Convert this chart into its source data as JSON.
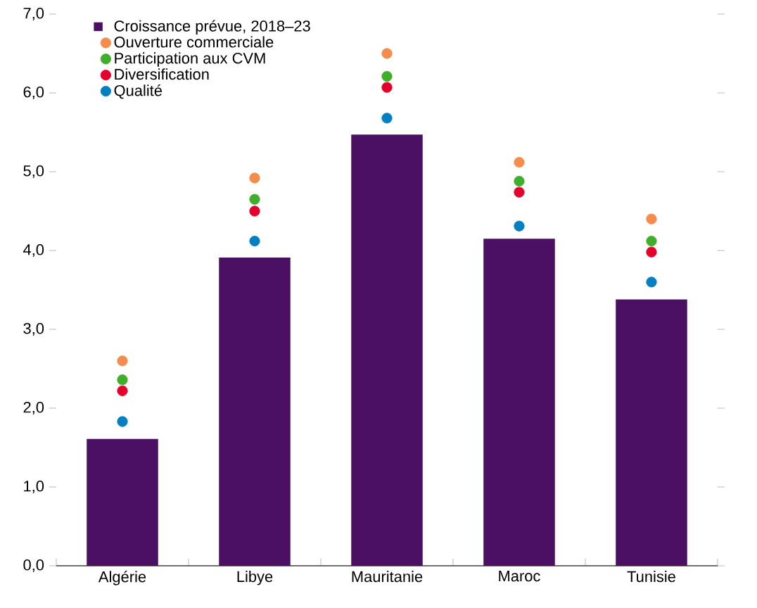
{
  "chart_data": {
    "type": "bar",
    "categories": [
      "Algérie",
      "Libye",
      "Mauritanie",
      "Maroc",
      "Tunisie"
    ],
    "series": [
      {
        "name": "Croissance prévue, 2018–23",
        "type": "bar",
        "color": "#4b0f63",
        "values": [
          1.61,
          3.91,
          5.47,
          4.15,
          3.38
        ]
      },
      {
        "name": "Ouverture commerciale",
        "type": "scatter",
        "color": "#f58b4c",
        "x": [
          "Algérie",
          "Libye",
          "Mauritanie",
          "Maroc",
          "Tunisie"
        ],
        "values": [
          2.6,
          4.92,
          6.5,
          5.12,
          4.4
        ]
      },
      {
        "name": "Participation aux CVM",
        "type": "scatter",
        "color": "#3fae2a",
        "x": [
          "Algérie",
          "Libye",
          "Mauritanie",
          "Maroc",
          "Tunisie"
        ],
        "values": [
          2.36,
          4.65,
          6.21,
          4.88,
          4.12
        ]
      },
      {
        "name": "Diversification",
        "type": "scatter",
        "color": "#e4002b",
        "x": [
          "Algérie",
          "Libye",
          "Mauritanie",
          "Maroc",
          "Tunisie"
        ],
        "values": [
          2.22,
          4.5,
          6.07,
          4.74,
          3.98
        ]
      },
      {
        "name": "Qualité",
        "type": "scatter",
        "color": "#0080c0",
        "x": [
          "Algérie",
          "Libye",
          "Mauritanie",
          "Maroc",
          "Tunisie"
        ],
        "values": [
          1.83,
          4.12,
          5.68,
          4.31,
          3.6
        ]
      }
    ],
    "ylim": [
      0,
      7
    ],
    "yticks": [
      {
        "value": 0,
        "label": "0,0"
      },
      {
        "value": 1,
        "label": "1,0"
      },
      {
        "value": 2,
        "label": "2,0"
      },
      {
        "value": 3,
        "label": "3,0"
      },
      {
        "value": 4,
        "label": "4,0"
      },
      {
        "value": 5,
        "label": "5,0"
      },
      {
        "value": 6,
        "label": "6,0"
      },
      {
        "value": 7,
        "label": "7,0"
      }
    ],
    "marker": "circle",
    "legend": "top left",
    "grid": false
  }
}
